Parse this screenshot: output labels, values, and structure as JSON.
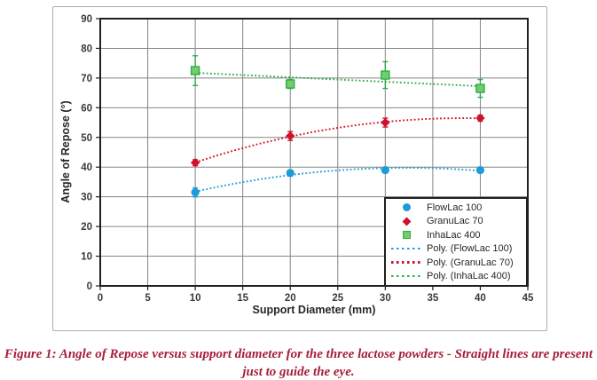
{
  "figure": {
    "caption": "Figure 1: Angle of Repose versus support diameter for the three lactose powders - Straight lines are present just to guide the eye."
  },
  "style": {
    "grid_color": "#858585",
    "axis_color": "#1f1f1f",
    "tick_label_color": "#3b3b3b",
    "frame_border_color": "#acacac",
    "caption_color": "#A61E3C"
  },
  "chart_data": {
    "type": "scatter",
    "title": "",
    "xlabel": "Support Diameter (mm)",
    "ylabel": "Angle of Repose (°)",
    "xlim": [
      0,
      45
    ],
    "ylim": [
      0,
      90
    ],
    "x_ticks": [
      0,
      5,
      10,
      15,
      20,
      25,
      30,
      35,
      40,
      45
    ],
    "y_ticks": [
      0,
      10,
      20,
      30,
      40,
      50,
      60,
      70,
      80,
      90
    ],
    "grid": true,
    "legend_position": "lower-right",
    "x": [
      10,
      20,
      30,
      40
    ],
    "series": [
      {
        "name": "FlowLac 100",
        "marker": "circle",
        "color": "#1E9CD8",
        "border_color": "#1E9CD8",
        "values": [
          31.5,
          38,
          39,
          39
        ],
        "errors": [
          1.5,
          1,
          0.8,
          0.8
        ]
      },
      {
        "name": "GranuLac 70",
        "marker": "diamond",
        "color": "#D1112B",
        "border_color": "#D1112B",
        "values": [
          41.5,
          50.5,
          55,
          56.5
        ],
        "errors": [
          1,
          1.5,
          1.5,
          1
        ]
      },
      {
        "name": "InhaLac 400",
        "marker": "square",
        "color": "#72CE6B",
        "border_color": "#2FAC46",
        "values": [
          72.5,
          68,
          71,
          66.5
        ],
        "errors": [
          5,
          1.5,
          4.5,
          3
        ]
      }
    ],
    "trendlines": [
      {
        "name": "Poly. (FlowLac 100)",
        "series": 0,
        "style": "dotted",
        "color": "#1E9CD8"
      },
      {
        "name": "Poly. (GranuLac 70)",
        "series": 1,
        "style": "dotted",
        "color": "#D1112B"
      },
      {
        "name": "Poly. (InhaLac 400)",
        "series": 2,
        "style": "dotted",
        "color": "#2FAC46"
      }
    ]
  }
}
